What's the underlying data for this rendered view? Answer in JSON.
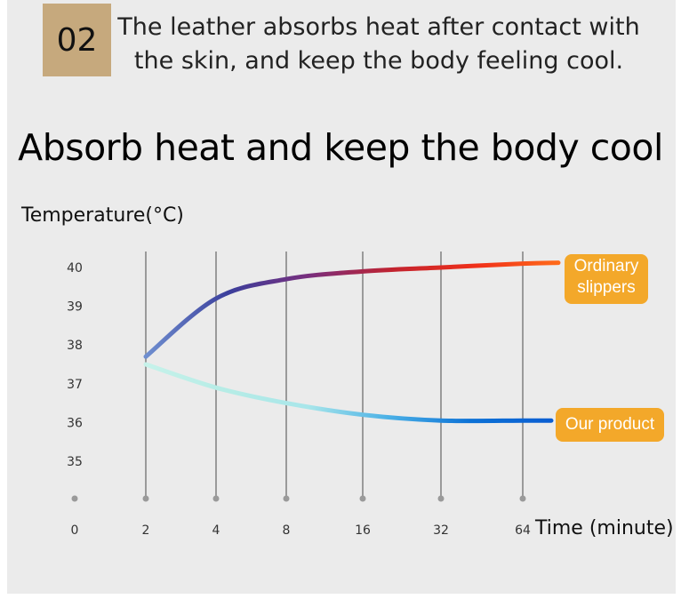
{
  "header": {
    "number": "02",
    "description_line1": "The leather absorbs heat after contact with",
    "description_line2": "the skin, and keep the body feeling cool."
  },
  "chart_data": {
    "type": "line",
    "title": "Absorb heat and keep the body cool",
    "ylabel": "Temperature(°C)",
    "xlabel": "Time (minute)",
    "categories": [
      "0",
      "2",
      "4",
      "8",
      "16",
      "32",
      "64"
    ],
    "y_ticks": [
      "35",
      "36",
      "37",
      "38",
      "39",
      "40"
    ],
    "ylim": [
      34,
      40.5
    ],
    "series": [
      {
        "name": "Ordinary slippers",
        "label_line1": "Ordinary",
        "label_line2": "slippers",
        "x": [
          "2",
          "4",
          "8",
          "16",
          "32",
          "64"
        ],
        "values": [
          37.7,
          39.2,
          39.7,
          39.9,
          40.0,
          40.1
        ],
        "colors": [
          "#6f8fd0",
          "#3b3f9c",
          "#7a2e7c",
          "#c2232f",
          "#f0301a",
          "#ff6a1a"
        ]
      },
      {
        "name": "Our product",
        "x": [
          "2",
          "4",
          "8",
          "16",
          "32",
          "64"
        ],
        "values": [
          37.5,
          36.9,
          36.5,
          36.2,
          36.05,
          36.05
        ],
        "colors": [
          "#c6f2ea",
          "#b6ece6",
          "#a8e6ea",
          "#4ab0e6",
          "#0d72d6",
          "#0b5ed2"
        ]
      }
    ],
    "grid": "vertical lines",
    "callout_color": "#f3a82a"
  }
}
